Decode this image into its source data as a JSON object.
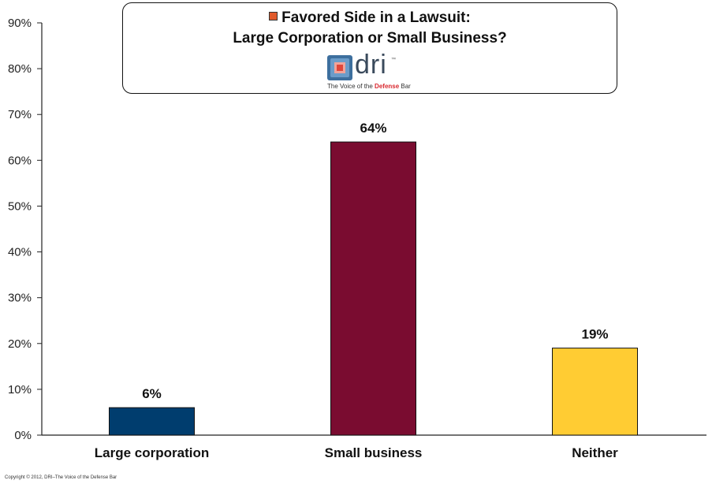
{
  "chart_data": {
    "type": "bar",
    "title_line_1": "Favored Side in a Lawsuit:",
    "title_line_2": "Large Corporation or Small Business?",
    "categories": [
      "Large corporation",
      "Small business",
      "Neither"
    ],
    "values": [
      6,
      64,
      19
    ],
    "data_labels": [
      "6%",
      "64%",
      "19%"
    ],
    "colors": [
      "#003d6e",
      "#7a0c30",
      "#ffcc33"
    ],
    "y_ticks": [
      "0%",
      "10%",
      "20%",
      "30%",
      "40%",
      "50%",
      "60%",
      "70%",
      "80%",
      "90%"
    ],
    "ylim": [
      0,
      90
    ],
    "grid": false,
    "xlabel": "",
    "ylabel": ""
  },
  "logo": {
    "text": "dri",
    "tm": "™",
    "tagline_pre": "The Voice of the ",
    "tagline_highlight": "Defense",
    "tagline_post": " Bar"
  },
  "footer": {
    "copyright": "Copyright © 2012, DRI–The Voice of the Defense Bar"
  },
  "colors": {
    "accent_marker": "#e05a2b",
    "axis": "#222222"
  }
}
